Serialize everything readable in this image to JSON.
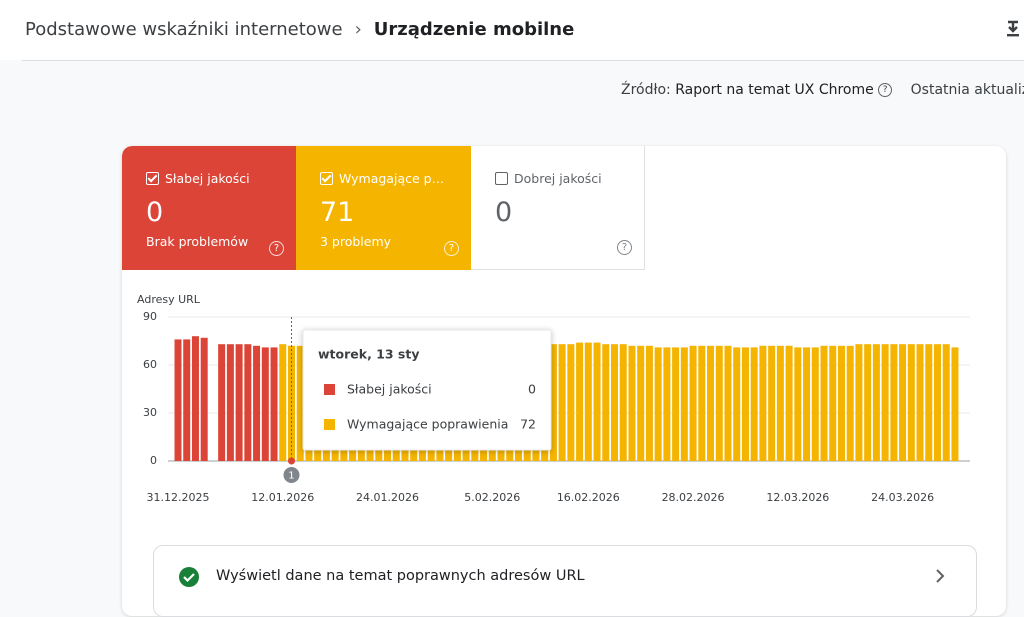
{
  "header": {
    "breadcrumb": "Podstawowe wskaźniki internetowe",
    "current": "Urządzenie mobilne"
  },
  "source": {
    "label": "Źródło:",
    "value": "Raport na temat UX Chrome",
    "last_update": "Ostatnia aktualizacja"
  },
  "tabs": [
    {
      "label": "Słabej jakości",
      "count": 0,
      "note": "Brak problemów"
    },
    {
      "label": "Wymagające poprawienia",
      "count": 71,
      "note": "3 problemy"
    },
    {
      "label": "Dobrej jakości",
      "count": 0
    }
  ],
  "chart_data": {
    "type": "stacked-bar",
    "y_label": "Adresy URL",
    "ylim": [
      0,
      90
    ],
    "yticks": [
      0,
      30,
      60,
      90
    ],
    "categories": [
      "31.12.2025",
      null,
      null,
      null,
      null,
      null,
      null,
      null,
      null,
      null,
      null,
      null,
      "12.01.2026",
      null,
      null,
      null,
      null,
      null,
      null,
      null,
      null,
      null,
      null,
      null,
      "24.01.2026",
      null,
      null,
      null,
      null,
      null,
      null,
      null,
      null,
      null,
      null,
      null,
      "5.02.2026",
      null,
      null,
      null,
      null,
      null,
      null,
      null,
      null,
      null,
      null,
      "16.02.2026",
      null,
      null,
      null,
      null,
      null,
      null,
      null,
      null,
      null,
      null,
      null,
      "28.02.2026",
      null,
      null,
      null,
      null,
      null,
      null,
      null,
      null,
      null,
      null,
      null,
      "12.03.2026",
      null,
      null,
      null,
      null,
      null,
      null,
      null,
      null,
      null,
      null,
      null,
      "24.03.2026",
      null,
      null,
      null,
      null,
      null,
      null
    ],
    "series": [
      {
        "name": "Słabej jakości",
        "color": "#db4437",
        "values": [
          76,
          76,
          78,
          77,
          null,
          73,
          73,
          73,
          73,
          72,
          71,
          71,
          0,
          0,
          0,
          0,
          0,
          0,
          0,
          0,
          0,
          0,
          0,
          0,
          0,
          0,
          0,
          0,
          0,
          0,
          0,
          0,
          0,
          0,
          0,
          0,
          0,
          0,
          0,
          0,
          0,
          0,
          0,
          0,
          0,
          0,
          0,
          0,
          0,
          0,
          0,
          0,
          0,
          0,
          0,
          0,
          0,
          0,
          0,
          0,
          0,
          0,
          0,
          0,
          0,
          0,
          0,
          0,
          0,
          0,
          0,
          0,
          0,
          0,
          0,
          0,
          0,
          0,
          0,
          0,
          0,
          0,
          0,
          0,
          0,
          0,
          0,
          0,
          0,
          0
        ]
      },
      {
        "name": "Wymagające poprawienia",
        "color": "#f4b400",
        "values": [
          0,
          0,
          0,
          0,
          null,
          0,
          0,
          0,
          0,
          0,
          0,
          0,
          73,
          72,
          72,
          72,
          72,
          72,
          72,
          72,
          72,
          72,
          72,
          72,
          72,
          72,
          72,
          72,
          72,
          72,
          72,
          72,
          72,
          73,
          73,
          72,
          73,
          73,
          74,
          75,
          74,
          74,
          74,
          73,
          73,
          73,
          74,
          74,
          74,
          73,
          73,
          73,
          72,
          72,
          72,
          71,
          71,
          71,
          71,
          72,
          72,
          72,
          72,
          72,
          71,
          71,
          71,
          72,
          72,
          72,
          72,
          71,
          71,
          71,
          72,
          72,
          72,
          72,
          73,
          73,
          73,
          73,
          73,
          73,
          73,
          73,
          73,
          73,
          73,
          71
        ]
      }
    ],
    "hover": {
      "title": "wtorek, 13 sty"
    },
    "annotations": [
      {
        "label": "1"
      }
    ]
  },
  "link": {
    "label": "Wyświetl dane na temat poprawnych adresów URL"
  }
}
